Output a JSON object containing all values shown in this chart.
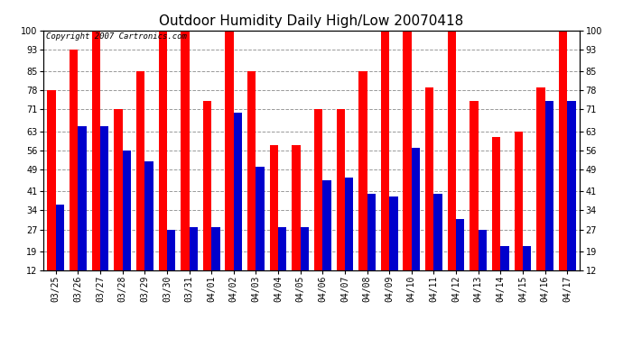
{
  "title": "Outdoor Humidity Daily High/Low 20070418",
  "copyright": "Copyright 2007 Cartronics.com",
  "categories": [
    "03/25",
    "03/26",
    "03/27",
    "03/28",
    "03/29",
    "03/30",
    "03/31",
    "04/01",
    "04/02",
    "04/03",
    "04/04",
    "04/05",
    "04/06",
    "04/07",
    "04/08",
    "04/09",
    "04/10",
    "04/11",
    "04/12",
    "04/13",
    "04/14",
    "04/15",
    "04/16",
    "04/17"
  ],
  "highs": [
    78,
    93,
    100,
    71,
    85,
    100,
    100,
    74,
    100,
    85,
    58,
    58,
    71,
    71,
    85,
    100,
    100,
    79,
    100,
    74,
    61,
    63,
    79,
    100
  ],
  "lows": [
    36,
    65,
    65,
    56,
    52,
    27,
    28,
    28,
    70,
    50,
    28,
    28,
    45,
    46,
    40,
    39,
    57,
    40,
    31,
    27,
    21,
    21,
    74,
    74
  ],
  "high_color": "#ff0000",
  "low_color": "#0000cc",
  "bg_color": "#ffffff",
  "plot_bg_color": "#ffffff",
  "grid_color": "#999999",
  "yticks": [
    12,
    19,
    27,
    34,
    41,
    49,
    56,
    63,
    71,
    78,
    85,
    93,
    100
  ],
  "ymin": 12,
  "ymax": 100,
  "bar_width": 0.38,
  "title_fontsize": 11,
  "tick_fontsize": 7,
  "copyright_fontsize": 6.5
}
